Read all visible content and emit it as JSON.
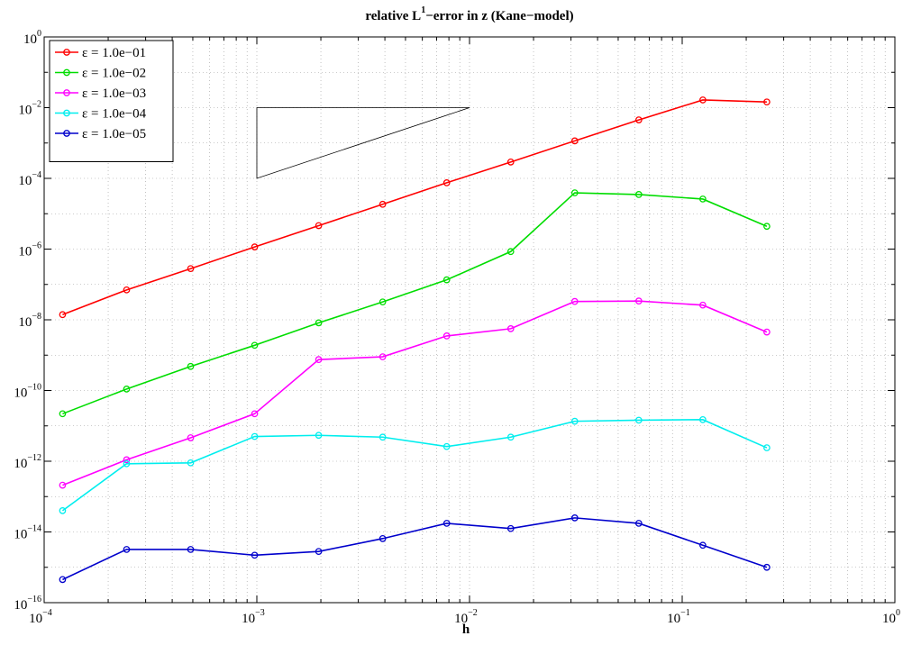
{
  "chart_data": {
    "type": "line",
    "title": "relative L",
    "title_superscript": "1",
    "title_rest": "−error in z (Kane−model)",
    "xlabel": "h",
    "ylabel": "",
    "x_scale": "log",
    "y_scale": "log",
    "xlim": [
      0.0001,
      1
    ],
    "ylim": [
      1e-16,
      1
    ],
    "grid": true,
    "legend_position": "top-left",
    "x_ticks": [
      {
        "base": "10",
        "exp": "−4",
        "value": 0.0001
      },
      {
        "base": "10",
        "exp": "−3",
        "value": 0.001
      },
      {
        "base": "10",
        "exp": "−2",
        "value": 0.01
      },
      {
        "base": "10",
        "exp": "−1",
        "value": 0.1
      },
      {
        "base": "10",
        "exp": "0",
        "value": 1
      }
    ],
    "y_ticks": [
      {
        "base": "10",
        "exp": "0",
        "value": 1
      },
      {
        "base": "10",
        "exp": "−2",
        "value": 0.01
      },
      {
        "base": "10",
        "exp": "−4",
        "value": 0.0001
      },
      {
        "base": "10",
        "exp": "−6",
        "value": 1e-06
      },
      {
        "base": "10",
        "exp": "−8",
        "value": 1e-08
      },
      {
        "base": "10",
        "exp": "−10",
        "value": 1e-10
      },
      {
        "base": "10",
        "exp": "−12",
        "value": 1e-12
      },
      {
        "base": "10",
        "exp": "−14",
        "value": 1e-14
      },
      {
        "base": "10",
        "exp": "−16",
        "value": 1e-16
      }
    ],
    "x": [
      0.0001220703125,
      0.000244140625,
      0.00048828125,
      0.0009765625,
      0.001953125,
      0.00390625,
      0.0078125,
      0.015625,
      0.03125,
      0.0625,
      0.125,
      0.25
    ],
    "series": [
      {
        "name": "ε = 1.0e−01",
        "color": "#ff0000",
        "values": [
          1.4e-08,
          7e-08,
          2.8e-07,
          1.15e-06,
          4.6e-06,
          1.85e-05,
          7.5e-05,
          0.00029,
          0.00115,
          0.0045,
          0.0165,
          0.0145
        ]
      },
      {
        "name": "ε = 1.0e−02",
        "color": "#00dd00",
        "values": [
          2.2e-11,
          1.1e-10,
          4.8e-10,
          1.9e-09,
          8.2e-09,
          3.2e-08,
          1.35e-07,
          8.5e-07,
          3.9e-05,
          3.5e-05,
          2.6e-05,
          4.4e-06
        ]
      },
      {
        "name": "ε = 1.0e−03",
        "color": "#ff00ff",
        "values": [
          2.1e-13,
          1.1e-12,
          4.6e-12,
          2.2e-11,
          7.5e-10,
          9e-10,
          3.5e-09,
          5.6e-09,
          3.3e-08,
          3.4e-08,
          2.6e-08,
          4.5e-09
        ]
      },
      {
        "name": "ε = 1.0e−04",
        "color": "#00eeee",
        "values": [
          4e-14,
          8.5e-13,
          9e-13,
          5e-12,
          5.4e-12,
          4.8e-12,
          2.6e-12,
          4.8e-12,
          1.35e-11,
          1.45e-11,
          1.5e-11,
          2.4e-12
        ]
      },
      {
        "name": "ε = 1.0e−05",
        "color": "#0000cc",
        "values": [
          4.5e-16,
          3.2e-15,
          3.2e-15,
          2.2e-15,
          2.8e-15,
          6.5e-15,
          1.75e-14,
          1.25e-14,
          2.5e-14,
          1.75e-14,
          4.2e-15,
          1e-15
        ]
      }
    ],
    "slope_triangle": {
      "points": [
        [
          0.001,
          0.0001
        ],
        [
          0.001,
          0.01
        ],
        [
          0.01,
          0.01
        ]
      ],
      "color": "#000000"
    }
  }
}
